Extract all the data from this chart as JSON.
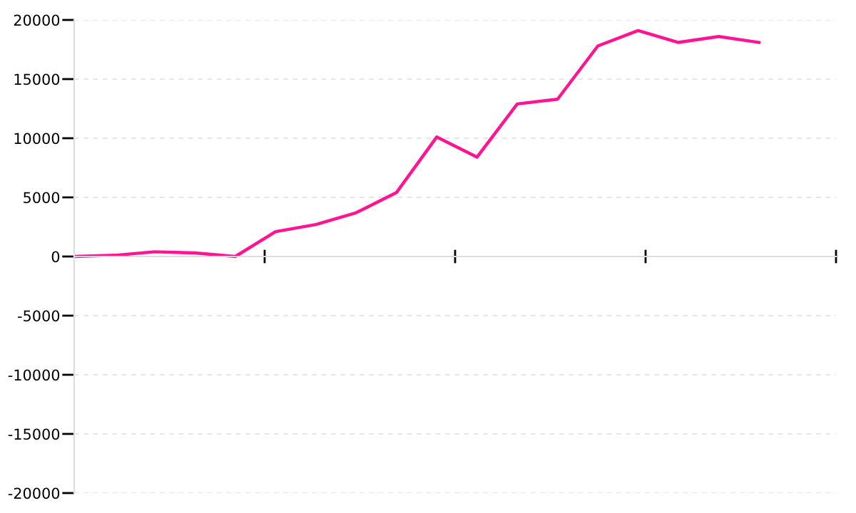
{
  "chart_data": {
    "type": "line",
    "categories": [
      null,
      null,
      null,
      null,
      null,
      null,
      null,
      null,
      null,
      null,
      null,
      null,
      null,
      null,
      null,
      null,
      null,
      null
    ],
    "series": [
      {
        "color": "#ff1493",
        "values": [
          0,
          100,
          400,
          300,
          0,
          2100,
          2700,
          3700,
          5400,
          10100,
          8400,
          12900,
          13300,
          17800,
          19100,
          18100,
          18600,
          18100
        ]
      }
    ],
    "ylim": [
      -20000,
      20000
    ],
    "yticks": [
      -20000,
      -15000,
      -10000,
      -5000,
      0,
      5000,
      10000,
      15000,
      20000
    ],
    "grid": "y",
    "marker": "none",
    "line_style": "solid"
  }
}
